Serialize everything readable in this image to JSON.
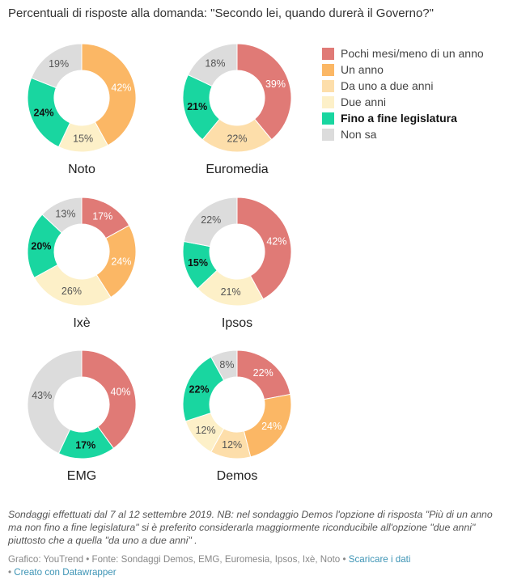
{
  "title": "Percentuali di risposte alla domanda: \"Secondo lei, quando durerà il Governo?\"",
  "chart_data": {
    "type": "pie",
    "variant": "donut",
    "categories": [
      "Pochi mesi/meno di un anno",
      "Un anno",
      "Da uno a due anni",
      "Due anni",
      "Fino a fine legislatura",
      "Non sa"
    ],
    "colors": [
      "#e07a76",
      "#fbb765",
      "#fddeaa",
      "#fdf0c8",
      "#19d6a0",
      "#dcdcdc"
    ],
    "highlight_category": "Fino a fine legislatura",
    "legend_position": "top-right",
    "charts": [
      {
        "name": "Noto",
        "values": [
          0,
          42,
          0,
          15,
          24,
          19
        ]
      },
      {
        "name": "Euromedia",
        "values": [
          39,
          0,
          22,
          0,
          21,
          18
        ]
      },
      {
        "name": "Ixè",
        "values": [
          17,
          24,
          0,
          26,
          20,
          13
        ]
      },
      {
        "name": "Ipsos",
        "values": [
          42,
          0,
          0,
          21,
          15,
          22
        ]
      },
      {
        "name": "EMG",
        "values": [
          40,
          0,
          0,
          0,
          17,
          43
        ]
      },
      {
        "name": "Demos",
        "values": [
          22,
          24,
          12,
          12,
          22,
          8
        ]
      }
    ]
  },
  "notes": "Sondaggi effettuati dal 7 al 12 settembre 2019. NB: nel sondaggio Demos l'opzione di risposta \"Più di un anno ma non fino a fine legislatura\" si è preferito considerarla maggiormente riconducibile all'opzione \"due anni\" piuttosto che a quella \"da uno a due anni\" .",
  "footer": {
    "text": "Grafico: YouTrend • Fonte: Sondaggi Demos, EMG, Euromesia, Ipsos, Ixè, Noto •",
    "download_link": "Scaricare i dati",
    "separator": "•",
    "datawrapper_link": "Creato con Datawrapper"
  }
}
